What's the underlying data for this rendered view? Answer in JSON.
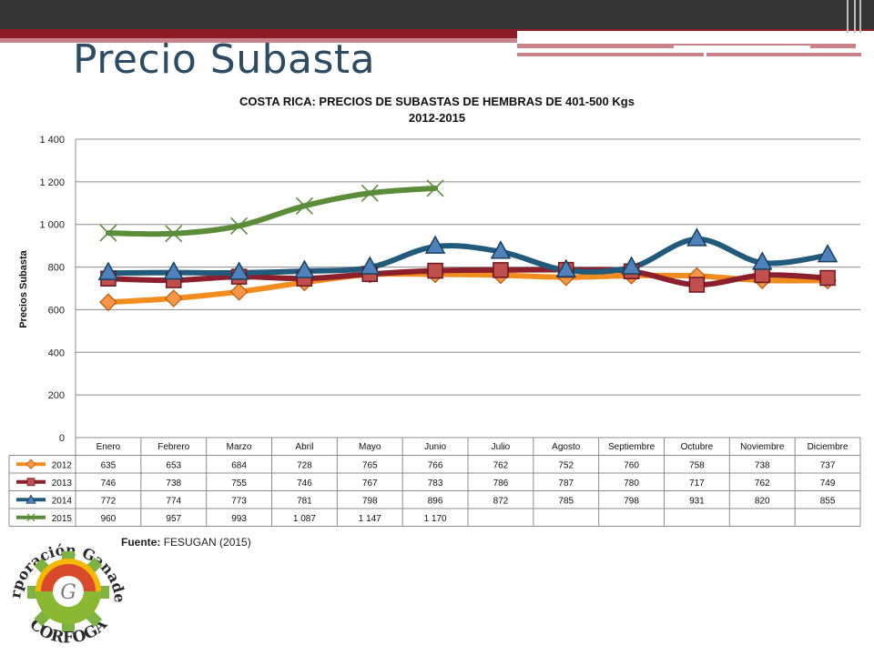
{
  "slide": {
    "title": "Precio Subasta"
  },
  "chart_data": {
    "type": "line",
    "title": "COSTA RICA: PRECIOS DE SUBASTAS DE HEMBRAS DE 401-500 Kgs",
    "subtitle": "2012-2015",
    "ylabel": "Precios Subasta",
    "xlabel": "",
    "ylim": [
      0,
      1400
    ],
    "yticks": [
      0,
      200,
      400,
      600,
      800,
      1000,
      1200,
      1400
    ],
    "ytick_labels": [
      "0",
      "200",
      "400",
      "600",
      "800",
      "1 000",
      "1 200",
      "1 400"
    ],
    "grid": true,
    "legend": "data-table",
    "categories": [
      "Enero",
      "Febrero",
      "Marzo",
      "Abril",
      "Mayo",
      "Junio",
      "Julio",
      "Agosto",
      "Septiembre",
      "Octubre",
      "Noviembre",
      "Diciembre"
    ],
    "series": [
      {
        "name": "2012",
        "color": "#f28c1e",
        "marker": "diamond",
        "marker_color": "#f79646",
        "values": [
          635,
          653,
          684,
          728,
          765,
          766,
          762,
          752,
          760,
          758,
          738,
          737
        ],
        "labels": [
          "635",
          "653",
          "684",
          "728",
          "765",
          "766",
          "762",
          "752",
          "760",
          "758",
          "738",
          "737"
        ]
      },
      {
        "name": "2013",
        "color": "#8b1f2c",
        "marker": "square",
        "marker_color": "#c0504d",
        "values": [
          746,
          738,
          755,
          746,
          767,
          783,
          786,
          787,
          780,
          717,
          762,
          749
        ],
        "labels": [
          "746",
          "738",
          "755",
          "746",
          "767",
          "783",
          "786",
          "787",
          "780",
          "717",
          "762",
          "749"
        ]
      },
      {
        "name": "2014",
        "color": "#215a7a",
        "marker": "triangle",
        "marker_color": "#4f81bd",
        "values": [
          772,
          774,
          773,
          781,
          798,
          896,
          872,
          785,
          798,
          931,
          820,
          855
        ],
        "labels": [
          "772",
          "774",
          "773",
          "781",
          "798",
          "896",
          "872",
          "785",
          "798",
          "931",
          "820",
          "855"
        ]
      },
      {
        "name": "2015",
        "color": "#5b8c3a",
        "marker": "x",
        "marker_color": "#5b8c3a",
        "values": [
          960,
          957,
          993,
          1087,
          1147,
          1170,
          null,
          null,
          null,
          null,
          null,
          null
        ],
        "labels": [
          "960",
          "957",
          "993",
          "1 087",
          "1 147",
          "1 170",
          "",
          "",
          "",
          "",
          "",
          ""
        ]
      }
    ]
  },
  "source": {
    "label": "Fuente:",
    "text": "FESUGAN (2015)"
  },
  "logo": {
    "top_text": "Corporación Ganadera",
    "bottom_text": "CORFOGA"
  }
}
